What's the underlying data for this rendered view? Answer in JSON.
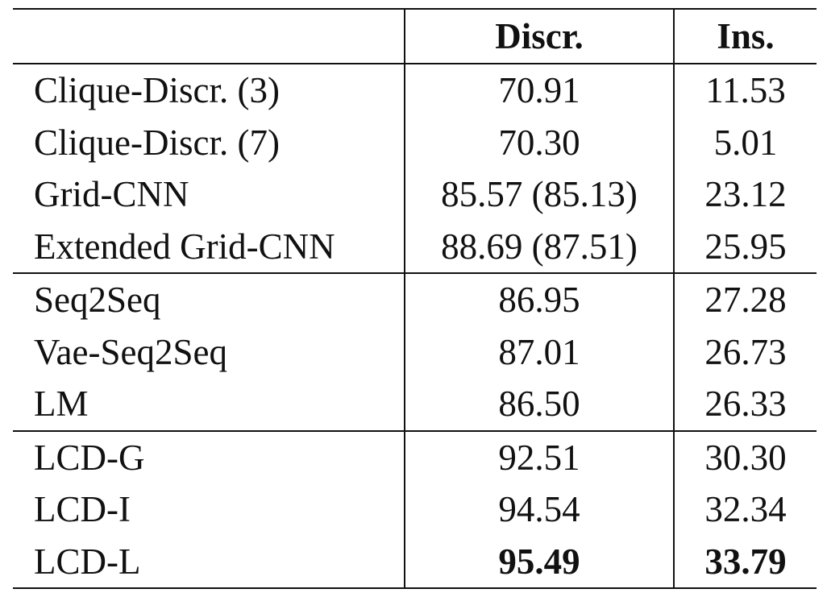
{
  "table": {
    "headers": [
      "",
      "Discr.",
      "Ins."
    ],
    "groups": [
      [
        {
          "model": "Clique-Discr. (3)",
          "discr": "70.91",
          "ins": "11.53"
        },
        {
          "model": "Clique-Discr. (7)",
          "discr": "70.30",
          "ins": "5.01"
        },
        {
          "model": "Grid-CNN",
          "discr": "85.57 (85.13)",
          "ins": "23.12"
        },
        {
          "model": "Extended Grid-CNN",
          "discr": "88.69 (87.51)",
          "ins": "25.95"
        }
      ],
      [
        {
          "model": "Seq2Seq",
          "discr": "86.95",
          "ins": "27.28"
        },
        {
          "model": "Vae-Seq2Seq",
          "discr": "87.01",
          "ins": "26.73"
        },
        {
          "model": "LM",
          "discr": "86.50",
          "ins": "26.33"
        }
      ],
      [
        {
          "model": "LCD-G",
          "discr": "92.51",
          "ins": "30.30"
        },
        {
          "model": "LCD-I",
          "discr": "94.54",
          "ins": "32.34"
        },
        {
          "model": "LCD-L",
          "discr": "95.49",
          "ins": "33.79",
          "bold": true
        }
      ]
    ]
  }
}
